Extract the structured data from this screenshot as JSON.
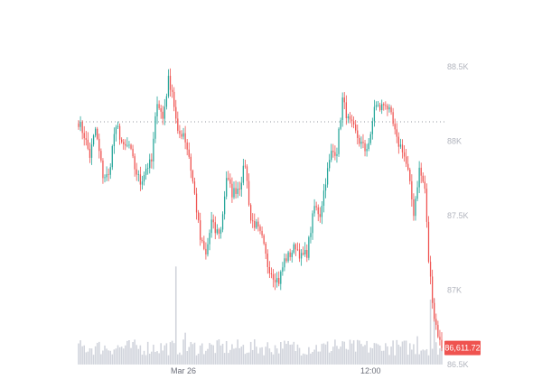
{
  "chart_data": {
    "type": "candlestick",
    "y_axis": {
      "ticks": [
        86500,
        87000,
        87500,
        88000,
        88500
      ],
      "tick_labels": [
        "86.5K",
        "87K",
        "87.5K",
        "88K",
        "88.5K"
      ],
      "range": [
        86500,
        88560
      ],
      "position": "right"
    },
    "x_axis": {
      "tick_labels": [
        "Mar 26",
        "12:00"
      ],
      "tick_positions_candle_index": [
        56,
        156
      ]
    },
    "reference_line": {
      "value": 88130,
      "style": "dotted"
    },
    "last_price": {
      "value": 86611.72,
      "label": "86,611.72"
    },
    "colors": {
      "up": "#26a69a",
      "down": "#ef5350",
      "volume": "#d1d4dc",
      "label_bg": "#ef5350"
    },
    "grid": false,
    "legend": "none",
    "anchors": [
      [
        0,
        88130
      ],
      [
        3,
        88040
      ],
      [
        6,
        87900
      ],
      [
        9,
        88080
      ],
      [
        13,
        87770
      ],
      [
        16,
        87760
      ],
      [
        19,
        88050
      ],
      [
        21,
        88080
      ],
      [
        24,
        87950
      ],
      [
        27,
        87970
      ],
      [
        30,
        87820
      ],
      [
        33,
        87720
      ],
      [
        36,
        87820
      ],
      [
        39,
        87860
      ],
      [
        42,
        88280
      ],
      [
        45,
        88150
      ],
      [
        48,
        88410
      ],
      [
        50,
        88340
      ],
      [
        53,
        88040
      ],
      [
        56,
        88060
      ],
      [
        59,
        87900
      ],
      [
        62,
        87640
      ],
      [
        65,
        87340
      ],
      [
        68,
        87230
      ],
      [
        71,
        87460
      ],
      [
        73,
        87390
      ],
      [
        76,
        87400
      ],
      [
        79,
        87760
      ],
      [
        82,
        87650
      ],
      [
        86,
        87700
      ],
      [
        89,
        87850
      ],
      [
        92,
        87470
      ],
      [
        95,
        87430
      ],
      [
        98,
        87340
      ],
      [
        101,
        87170
      ],
      [
        104,
        87100
      ],
      [
        107,
        87060
      ],
      [
        110,
        87200
      ],
      [
        113,
        87240
      ],
      [
        116,
        87300
      ],
      [
        119,
        87220
      ],
      [
        122,
        87250
      ],
      [
        126,
        87560
      ],
      [
        129,
        87510
      ],
      [
        132,
        87740
      ],
      [
        135,
        87920
      ],
      [
        138,
        87940
      ],
      [
        141,
        88280
      ],
      [
        144,
        88140
      ],
      [
        147,
        88080
      ],
      [
        150,
        88000
      ],
      [
        153,
        87940
      ],
      [
        156,
        88020
      ],
      [
        158,
        88240
      ],
      [
        161,
        88220
      ],
      [
        164,
        88260
      ],
      [
        167,
        88160
      ],
      [
        170,
        88000
      ],
      [
        173,
        87950
      ],
      [
        176,
        87790
      ],
      [
        179,
        87520
      ],
      [
        182,
        87810
      ],
      [
        185,
        87680
      ],
      [
        187,
        87200
      ],
      [
        190,
        86820
      ],
      [
        193,
        86650
      ],
      [
        194,
        86612
      ]
    ],
    "volume_spikes": {
      "52": 4,
      "57": 1.9,
      "109": 1.7,
      "137": 1.6,
      "162": 1.5,
      "181": 1.8,
      "188": 4.2,
      "190": 3.0
    }
  }
}
